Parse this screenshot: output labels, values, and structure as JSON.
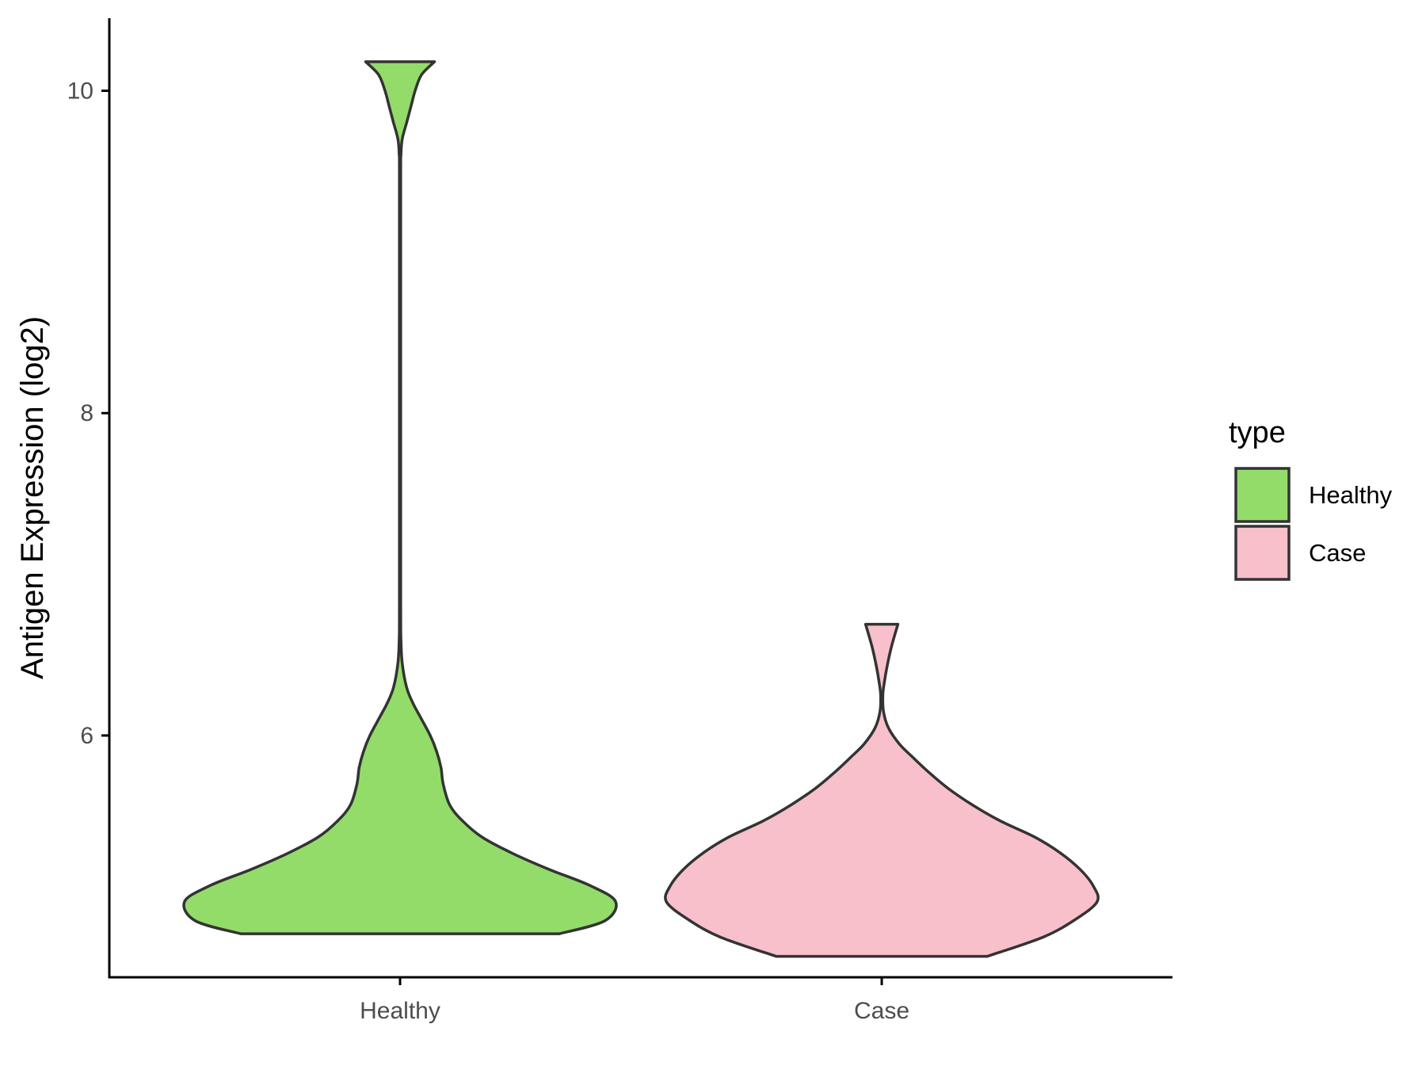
{
  "chart_data": {
    "type": "violin",
    "title": "",
    "xlabel": "",
    "ylabel": "Antigen Expression (log2)",
    "ylim": [
      4.5,
      10.45
    ],
    "yticks": [
      6,
      8,
      10
    ],
    "categories": [
      "Healthy",
      "Case"
    ],
    "grid": false,
    "legend": {
      "title": "type",
      "position": "right",
      "entries": [
        {
          "label": "Healthy",
          "color": "#93dc6a"
        },
        {
          "label": "Case",
          "color": "#f8c0cb"
        }
      ]
    },
    "series": [
      {
        "category": "Healthy",
        "color": "#93dc6a",
        "min": 4.77,
        "max": 10.18,
        "density": [
          [
            4.77,
            0.74
          ],
          [
            4.85,
            0.95
          ],
          [
            4.97,
            1.0
          ],
          [
            5.07,
            0.88
          ],
          [
            5.17,
            0.69
          ],
          [
            5.27,
            0.52
          ],
          [
            5.37,
            0.38
          ],
          [
            5.47,
            0.29
          ],
          [
            5.57,
            0.23
          ],
          [
            5.7,
            0.2
          ],
          [
            5.8,
            0.19
          ],
          [
            5.9,
            0.17
          ],
          [
            6.0,
            0.14
          ],
          [
            6.1,
            0.1
          ],
          [
            6.2,
            0.06
          ],
          [
            6.3,
            0.03
          ],
          [
            6.45,
            0.01
          ],
          [
            6.6,
            0.004
          ],
          [
            6.8,
            0.003
          ],
          [
            8.0,
            0.003
          ],
          [
            9.5,
            0.003
          ],
          [
            9.6,
            0.004
          ],
          [
            9.7,
            0.01
          ],
          [
            9.8,
            0.03
          ],
          [
            9.9,
            0.05
          ],
          [
            10.0,
            0.07
          ],
          [
            10.1,
            0.1
          ],
          [
            10.18,
            0.16
          ]
        ]
      },
      {
        "category": "Case",
        "color": "#f8c0cb",
        "min": 4.63,
        "max": 6.69,
        "density": [
          [
            4.63,
            0.49
          ],
          [
            4.75,
            0.75
          ],
          [
            4.86,
            0.9
          ],
          [
            4.97,
            1.0
          ],
          [
            5.07,
            0.98
          ],
          [
            5.17,
            0.92
          ],
          [
            5.27,
            0.83
          ],
          [
            5.37,
            0.71
          ],
          [
            5.47,
            0.55
          ],
          [
            5.57,
            0.42
          ],
          [
            5.67,
            0.31
          ],
          [
            5.77,
            0.22
          ],
          [
            5.87,
            0.14
          ],
          [
            5.95,
            0.08
          ],
          [
            6.05,
            0.03
          ],
          [
            6.15,
            0.008
          ],
          [
            6.25,
            0.005
          ],
          [
            6.33,
            0.012
          ],
          [
            6.43,
            0.025
          ],
          [
            6.55,
            0.045
          ],
          [
            6.69,
            0.075
          ]
        ]
      }
    ]
  }
}
